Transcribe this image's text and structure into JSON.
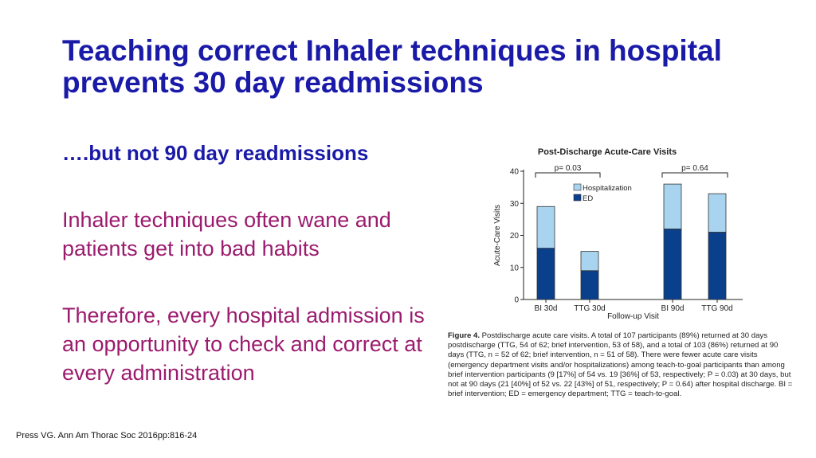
{
  "slide": {
    "title": "Teaching correct Inhaler techniques in hospital prevents 30 day readmissions",
    "subtitle": "….but not 90 day readmissions",
    "para1": "Inhaler techniques often wane and patients get into bad habits",
    "para2": "Therefore, every hospital admission is an opportunity to check and correct at every administration",
    "citation": "Press VG. Ann Am Thorac Soc 2016pp:816-24"
  },
  "figure": {
    "caption_label": "Figure 4.",
    "caption_text": "Postdischarge acute care visits. A total of 107 participants (89%) returned at 30 days postdischarge (TTG, 54 of 62; brief intervention, 53 of 58), and a total of 103 (86%) returned at 90 days (TTG, n = 52 of 62; brief intervention, n = 51 of 58). There were fewer acute care visits (emergency department visits and/or hospitalizations) among teach-to-goal participants than among brief intervention participants (9 [17%] of 54 vs. 19 [36%] of 53, respectively; P = 0.03) at 30 days, but not at 90 days (21 [40%] of 52 vs. 22 [43%] of 51, respectively; P = 0.64) after hospital discharge. BI = brief intervention; ED = emergency department; TTG = teach-to-goal."
  },
  "chart_data": {
    "type": "bar",
    "stacked": true,
    "title": "Post-Discharge Acute-Care Visits",
    "xlabel": "Follow-up Visit",
    "ylabel": "Acute-Care Visits",
    "ylim": [
      0,
      40
    ],
    "yticks": [
      "0",
      "10",
      "20",
      "30",
      "40"
    ],
    "categories": [
      "BI 30d",
      "TTG 30d",
      "BI 90d",
      "TTG 90d"
    ],
    "series": [
      {
        "name": "ED",
        "values": [
          16,
          9,
          22,
          21
        ],
        "color": "#0a3f8c"
      },
      {
        "name": "Hospitalization",
        "values": [
          13,
          6,
          14,
          12
        ],
        "color": "#a8d4f0"
      }
    ],
    "annotations": [
      {
        "text": "p= 0.03",
        "spans": [
          "BI 30d",
          "TTG 30d"
        ]
      },
      {
        "text": "p= 0.64",
        "spans": [
          "BI 90d",
          "TTG 90d"
        ]
      }
    ],
    "legend_position": "top-left",
    "grid": false
  }
}
